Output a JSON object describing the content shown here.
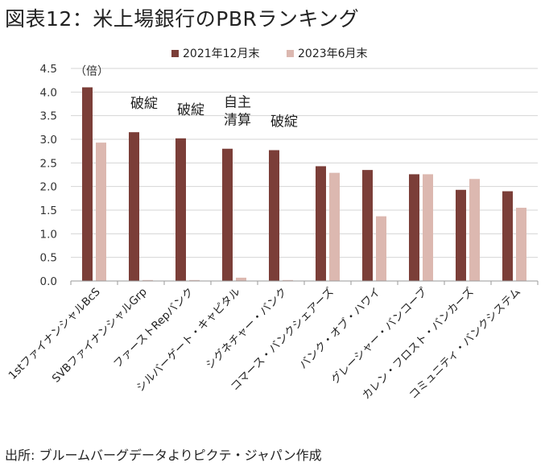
{
  "title": "図表12：米上場銀行のPBRランキング",
  "source": "出所: ブルームバーグデータよりピクテ・ジャパン作成",
  "chart_data": {
    "type": "bar",
    "title": "図表12：米上場銀行のPBRランキング",
    "unit_label": "（倍）",
    "xlabel": "",
    "ylabel": "",
    "ylim": [
      0,
      4.5
    ],
    "yticks": [
      0.0,
      0.5,
      1.0,
      1.5,
      2.0,
      2.5,
      3.0,
      3.5,
      4.0,
      4.5
    ],
    "ytick_labels": [
      "0.0",
      "0.5",
      "1.0",
      "1.5",
      "2.0",
      "2.5",
      "3.0",
      "3.5",
      "4.0",
      "4.5"
    ],
    "grid": true,
    "legend_position": "top-center",
    "categories": [
      "1stファイナンシャルBcS",
      "SVBファイナンシャルGrp",
      "ファーストRepバンク",
      "シルバーゲート・キャピタル",
      "シグネチャー・バンク",
      "コマース・バンクシェアーズ",
      "バンク・オブ・ハワイ",
      "グレーシャー・バンコープ",
      "カレン・フロスト・バンカーズ",
      "コミュニティ・バンクシステム"
    ],
    "series": [
      {
        "name": "2021年12月末",
        "color": "#7b3e38",
        "values": [
          4.1,
          3.15,
          3.02,
          2.8,
          2.77,
          2.43,
          2.35,
          2.26,
          1.93,
          1.9
        ]
      },
      {
        "name": "2023年6月末",
        "color": "#dcb8b0",
        "values": [
          2.93,
          0.02,
          0.02,
          0.07,
          0.02,
          2.29,
          1.37,
          2.26,
          2.16,
          1.55
        ]
      }
    ],
    "annotations": [
      {
        "category_index": 1,
        "lines": [
          "破綻"
        ]
      },
      {
        "category_index": 2,
        "lines": [
          "破綻"
        ]
      },
      {
        "category_index": 3,
        "lines": [
          "自主",
          "清算"
        ]
      },
      {
        "category_index": 4,
        "lines": [
          "破綻"
        ]
      }
    ]
  }
}
